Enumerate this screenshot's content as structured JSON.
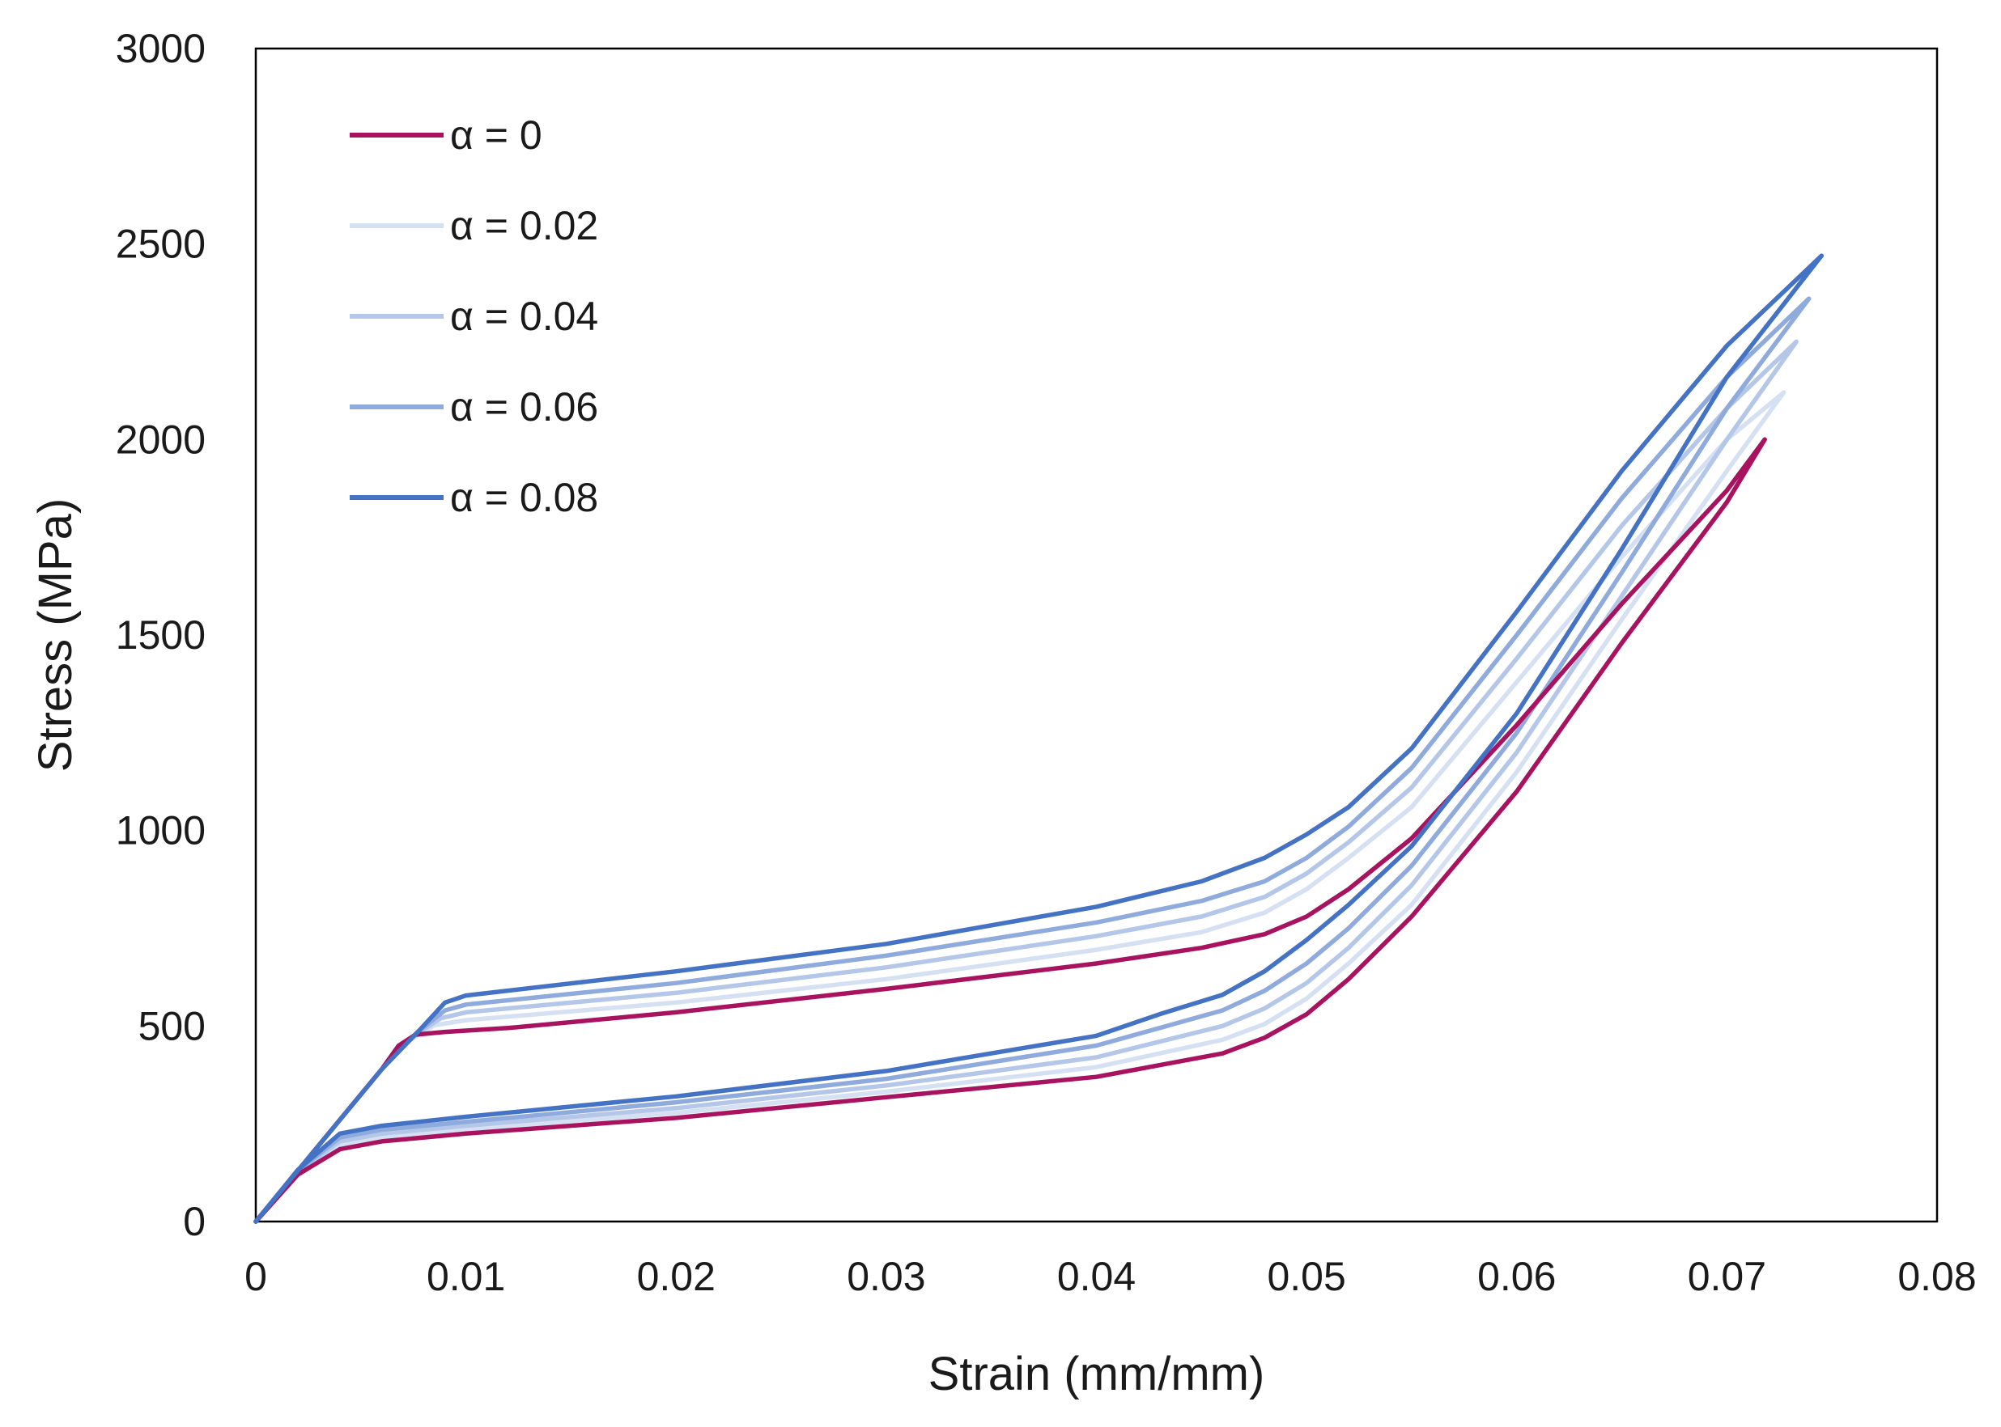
{
  "chart_data": {
    "type": "line",
    "title": "",
    "xlabel": "Strain (mm/mm)",
    "ylabel": "Stress (MPa)",
    "xlim": [
      0,
      0.08
    ],
    "ylim": [
      0,
      3000
    ],
    "xticks": [
      0,
      0.01,
      0.02,
      0.03,
      0.04,
      0.05,
      0.06,
      0.07,
      0.08
    ],
    "xtick_labels": [
      "0",
      "0.01",
      "0.02",
      "0.03",
      "0.04",
      "0.05",
      "0.06",
      "0.07",
      "0.08"
    ],
    "yticks": [
      0,
      500,
      1000,
      1500,
      2000,
      2500,
      3000
    ],
    "ytick_labels": [
      "0",
      "500",
      "1000",
      "1500",
      "2000",
      "2500",
      "3000"
    ],
    "grid": false,
    "legend_position": "top-left",
    "series": [
      {
        "name": "α = 0",
        "color": "#A8125F",
        "loading": [
          [
            0,
            0
          ],
          [
            0.002,
            130
          ],
          [
            0.004,
            260
          ],
          [
            0.006,
            390
          ],
          [
            0.0068,
            450
          ],
          [
            0.0076,
            478
          ],
          [
            0.009,
            485
          ],
          [
            0.012,
            495
          ],
          [
            0.02,
            535
          ],
          [
            0.03,
            595
          ],
          [
            0.04,
            660
          ],
          [
            0.045,
            700
          ],
          [
            0.048,
            735
          ],
          [
            0.05,
            780
          ],
          [
            0.052,
            850
          ],
          [
            0.055,
            980
          ],
          [
            0.06,
            1270
          ],
          [
            0.065,
            1580
          ],
          [
            0.07,
            1870
          ],
          [
            0.0718,
            2000
          ]
        ],
        "unloading": [
          [
            0.0718,
            2000
          ],
          [
            0.07,
            1840
          ],
          [
            0.065,
            1480
          ],
          [
            0.06,
            1100
          ],
          [
            0.055,
            780
          ],
          [
            0.052,
            620
          ],
          [
            0.05,
            530
          ],
          [
            0.048,
            470
          ],
          [
            0.046,
            430
          ],
          [
            0.043,
            400
          ],
          [
            0.04,
            370
          ],
          [
            0.03,
            318
          ],
          [
            0.02,
            265
          ],
          [
            0.01,
            225
          ],
          [
            0.006,
            205
          ],
          [
            0.004,
            185
          ],
          [
            0.002,
            120
          ],
          [
            0,
            0
          ]
        ]
      },
      {
        "name": "α = 0.02",
        "color": "#D5E0F3",
        "loading": [
          [
            0,
            0
          ],
          [
            0.002,
            130
          ],
          [
            0.004,
            260
          ],
          [
            0.006,
            390
          ],
          [
            0.0072,
            460
          ],
          [
            0.0085,
            502
          ],
          [
            0.01,
            515
          ],
          [
            0.02,
            560
          ],
          [
            0.03,
            620
          ],
          [
            0.04,
            695
          ],
          [
            0.045,
            740
          ],
          [
            0.048,
            790
          ],
          [
            0.05,
            850
          ],
          [
            0.052,
            930
          ],
          [
            0.055,
            1060
          ],
          [
            0.06,
            1380
          ],
          [
            0.065,
            1700
          ],
          [
            0.07,
            2000
          ],
          [
            0.0727,
            2120
          ]
        ],
        "unloading": [
          [
            0.0727,
            2120
          ],
          [
            0.07,
            1920
          ],
          [
            0.065,
            1540
          ],
          [
            0.06,
            1150
          ],
          [
            0.055,
            810
          ],
          [
            0.052,
            660
          ],
          [
            0.05,
            570
          ],
          [
            0.048,
            505
          ],
          [
            0.046,
            465
          ],
          [
            0.043,
            430
          ],
          [
            0.04,
            395
          ],
          [
            0.03,
            332
          ],
          [
            0.02,
            278
          ],
          [
            0.01,
            235
          ],
          [
            0.006,
            215
          ],
          [
            0.004,
            195
          ],
          [
            0.002,
            125
          ],
          [
            0,
            0
          ]
        ]
      },
      {
        "name": "α = 0.04",
        "color": "#B4C7E9",
        "loading": [
          [
            0,
            0
          ],
          [
            0.002,
            130
          ],
          [
            0.004,
            260
          ],
          [
            0.006,
            390
          ],
          [
            0.0074,
            470
          ],
          [
            0.0088,
            520
          ],
          [
            0.01,
            535
          ],
          [
            0.02,
            585
          ],
          [
            0.03,
            650
          ],
          [
            0.04,
            730
          ],
          [
            0.045,
            780
          ],
          [
            0.048,
            830
          ],
          [
            0.05,
            890
          ],
          [
            0.052,
            970
          ],
          [
            0.055,
            1110
          ],
          [
            0.06,
            1440
          ],
          [
            0.065,
            1780
          ],
          [
            0.07,
            2080
          ],
          [
            0.0733,
            2250
          ]
        ],
        "unloading": [
          [
            0.0733,
            2250
          ],
          [
            0.07,
            2000
          ],
          [
            0.065,
            1600
          ],
          [
            0.06,
            1200
          ],
          [
            0.055,
            860
          ],
          [
            0.052,
            700
          ],
          [
            0.05,
            610
          ],
          [
            0.048,
            545
          ],
          [
            0.046,
            500
          ],
          [
            0.043,
            460
          ],
          [
            0.04,
            420
          ],
          [
            0.03,
            348
          ],
          [
            0.02,
            290
          ],
          [
            0.01,
            245
          ],
          [
            0.006,
            225
          ],
          [
            0.004,
            205
          ],
          [
            0.002,
            128
          ],
          [
            0,
            0
          ]
        ]
      },
      {
        "name": "α = 0.06",
        "color": "#8FAADC",
        "loading": [
          [
            0,
            0
          ],
          [
            0.002,
            130
          ],
          [
            0.004,
            260
          ],
          [
            0.006,
            390
          ],
          [
            0.0076,
            480
          ],
          [
            0.009,
            540
          ],
          [
            0.01,
            555
          ],
          [
            0.02,
            610
          ],
          [
            0.03,
            680
          ],
          [
            0.04,
            765
          ],
          [
            0.045,
            820
          ],
          [
            0.048,
            870
          ],
          [
            0.05,
            930
          ],
          [
            0.052,
            1010
          ],
          [
            0.055,
            1160
          ],
          [
            0.06,
            1500
          ],
          [
            0.065,
            1850
          ],
          [
            0.07,
            2160
          ],
          [
            0.0739,
            2360
          ]
        ],
        "unloading": [
          [
            0.0739,
            2360
          ],
          [
            0.07,
            2080
          ],
          [
            0.065,
            1660
          ],
          [
            0.06,
            1250
          ],
          [
            0.055,
            910
          ],
          [
            0.052,
            750
          ],
          [
            0.05,
            660
          ],
          [
            0.048,
            590
          ],
          [
            0.046,
            540
          ],
          [
            0.043,
            495
          ],
          [
            0.04,
            450
          ],
          [
            0.03,
            365
          ],
          [
            0.02,
            305
          ],
          [
            0.01,
            255
          ],
          [
            0.006,
            235
          ],
          [
            0.004,
            215
          ],
          [
            0.002,
            130
          ],
          [
            0,
            0
          ]
        ]
      },
      {
        "name": "α = 0.08",
        "color": "#4472C4",
        "loading": [
          [
            0,
            0
          ],
          [
            0.002,
            130
          ],
          [
            0.004,
            260
          ],
          [
            0.006,
            390
          ],
          [
            0.0078,
            490
          ],
          [
            0.009,
            560
          ],
          [
            0.01,
            578
          ],
          [
            0.02,
            640
          ],
          [
            0.03,
            710
          ],
          [
            0.04,
            805
          ],
          [
            0.045,
            870
          ],
          [
            0.048,
            930
          ],
          [
            0.05,
            990
          ],
          [
            0.052,
            1060
          ],
          [
            0.055,
            1210
          ],
          [
            0.06,
            1560
          ],
          [
            0.065,
            1920
          ],
          [
            0.07,
            2240
          ],
          [
            0.0745,
            2470
          ]
        ],
        "unloading": [
          [
            0.0745,
            2470
          ],
          [
            0.07,
            2160
          ],
          [
            0.065,
            1720
          ],
          [
            0.06,
            1300
          ],
          [
            0.055,
            960
          ],
          [
            0.052,
            810
          ],
          [
            0.05,
            720
          ],
          [
            0.048,
            640
          ],
          [
            0.046,
            580
          ],
          [
            0.043,
            530
          ],
          [
            0.04,
            475
          ],
          [
            0.03,
            385
          ],
          [
            0.02,
            320
          ],
          [
            0.01,
            268
          ],
          [
            0.006,
            245
          ],
          [
            0.004,
            225
          ],
          [
            0.002,
            132
          ],
          [
            0,
            0
          ]
        ]
      }
    ]
  }
}
